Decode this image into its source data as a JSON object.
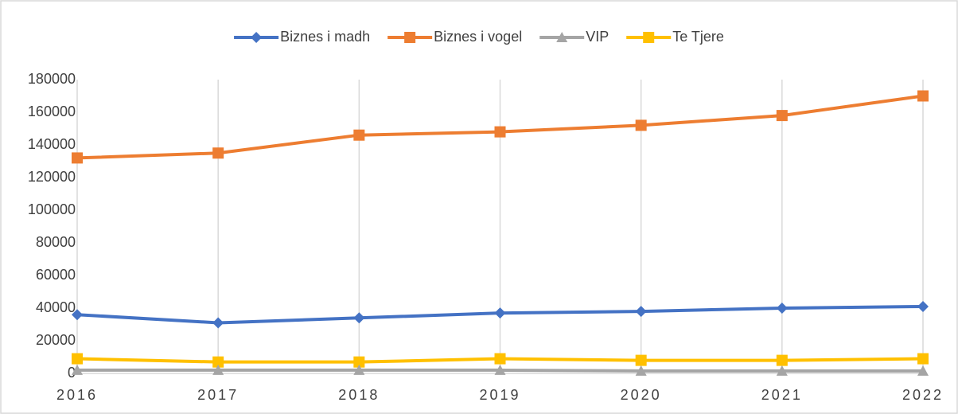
{
  "chart_data": {
    "type": "line",
    "categories": [
      "2016",
      "2017",
      "2018",
      "2019",
      "2020",
      "2021",
      "2022"
    ],
    "series": [
      {
        "name": "Biznes i madh",
        "color": "#4472c4",
        "marker": "diamond",
        "values": [
          36000,
          31000,
          34000,
          37000,
          38000,
          40000,
          41000
        ]
      },
      {
        "name": "Biznes i vogel",
        "color": "#ed7d31",
        "marker": "square",
        "values": [
          132000,
          135000,
          146000,
          148000,
          152000,
          158000,
          170000
        ]
      },
      {
        "name": "VIP",
        "color": "#a5a5a5",
        "marker": "triangle",
        "values": [
          2000,
          2000,
          2000,
          2000,
          1500,
          1500,
          1500
        ]
      },
      {
        "name": "Te Tjere",
        "color": "#ffc000",
        "marker": "square",
        "values": [
          9000,
          7000,
          7000,
          9000,
          8000,
          8000,
          9000
        ]
      }
    ],
    "ylim": [
      0,
      180000
    ],
    "yticks": [
      0,
      20000,
      40000,
      60000,
      80000,
      100000,
      120000,
      140000,
      160000,
      180000
    ],
    "grid": "x",
    "legend": "top"
  }
}
